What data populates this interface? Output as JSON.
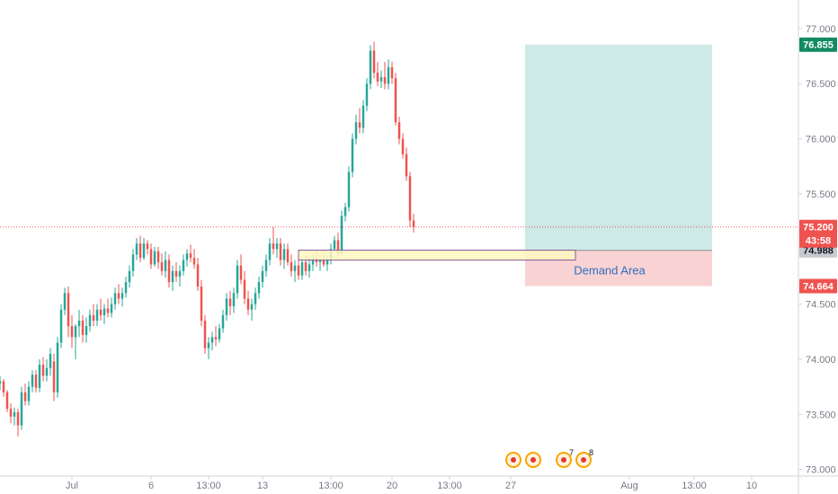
{
  "colors": {
    "up": "#26a69a",
    "down": "#ef5350",
    "target_zone": "#cdeae6",
    "stop_zone": "#f9d2d3",
    "demand_fill": "#fff7c0",
    "demand_stroke": "#8a5a9a",
    "demand_text": "#2f6fbf",
    "current_price_line": "#ef5350",
    "entry_tag": "#c7c9cf",
    "target_tag": "#138a63",
    "stop_tag": "#ef5350",
    "axis_line": "#d1d4dc"
  },
  "chart_data": {
    "type": "candlestick",
    "ylim": [
      72.94,
      77.26
    ],
    "y_ticks": [
      "73.000",
      "73.500",
      "74.000",
      "74.500",
      "75.000",
      "75.500",
      "76.000",
      "76.500",
      "77.000"
    ],
    "x_ticks": [
      "Jul",
      "6",
      "13:00",
      "13",
      "13:00",
      "20",
      "13:00",
      "27",
      "Aug",
      "13:00",
      "10"
    ],
    "x_tick_index": [
      20,
      42,
      58,
      73,
      92,
      109,
      125,
      142,
      175,
      193,
      209
    ],
    "x_range_index": [
      0,
      222
    ],
    "candles": [
      [
        73.78,
        73.85,
        73.72,
        73.8
      ],
      [
        73.8,
        73.82,
        73.66,
        73.7
      ],
      [
        73.7,
        73.72,
        73.52,
        73.55
      ],
      [
        73.55,
        73.6,
        73.42,
        73.48
      ],
      [
        73.48,
        73.56,
        73.4,
        73.52
      ],
      [
        73.52,
        73.55,
        73.3,
        73.4
      ],
      [
        73.4,
        73.75,
        73.36,
        73.7
      ],
      [
        73.7,
        73.78,
        73.58,
        73.62
      ],
      [
        73.62,
        73.8,
        73.58,
        73.75
      ],
      [
        73.75,
        73.9,
        73.7,
        73.86
      ],
      [
        73.86,
        73.9,
        73.7,
        73.74
      ],
      [
        73.74,
        74.0,
        73.7,
        73.95
      ],
      [
        73.95,
        74.02,
        73.8,
        73.85
      ],
      [
        73.85,
        74.0,
        73.8,
        73.92
      ],
      [
        73.92,
        74.1,
        73.85,
        74.05
      ],
      [
        73.98,
        74.05,
        73.62,
        73.7
      ],
      [
        73.7,
        74.2,
        73.65,
        74.15
      ],
      [
        74.15,
        74.5,
        74.1,
        74.45
      ],
      [
        74.45,
        74.65,
        74.4,
        74.6
      ],
      [
        74.6,
        74.66,
        74.2,
        74.3
      ],
      [
        74.3,
        74.4,
        74.1,
        74.2
      ],
      [
        74.2,
        74.32,
        74.0,
        74.3
      ],
      [
        74.3,
        74.45,
        74.2,
        74.35
      ],
      [
        74.35,
        74.4,
        74.15,
        74.22
      ],
      [
        74.22,
        74.38,
        74.15,
        74.3
      ],
      [
        74.3,
        74.45,
        74.25,
        74.4
      ],
      [
        74.4,
        74.5,
        74.3,
        74.35
      ],
      [
        74.35,
        74.5,
        74.3,
        74.45
      ],
      [
        74.45,
        74.55,
        74.35,
        74.4
      ],
      [
        74.4,
        74.5,
        74.32,
        74.46
      ],
      [
        74.46,
        74.55,
        74.38,
        74.42
      ],
      [
        74.42,
        74.56,
        74.38,
        74.5
      ],
      [
        74.5,
        74.65,
        74.45,
        74.6
      ],
      [
        74.6,
        74.68,
        74.5,
        74.55
      ],
      [
        74.55,
        74.65,
        74.48,
        74.6
      ],
      [
        74.6,
        74.75,
        74.56,
        74.7
      ],
      [
        74.7,
        74.85,
        74.65,
        74.8
      ],
      [
        74.8,
        75.0,
        74.75,
        74.95
      ],
      [
        74.95,
        75.1,
        74.9,
        75.05
      ],
      [
        75.05,
        75.12,
        74.88,
        74.92
      ],
      [
        74.92,
        75.1,
        74.9,
        75.05
      ],
      [
        75.05,
        75.08,
        74.95,
        75.0
      ],
      [
        75.0,
        75.05,
        74.82,
        74.86
      ],
      [
        74.86,
        75.02,
        74.84,
        74.98
      ],
      [
        74.98,
        75.02,
        74.82,
        74.88
      ],
      [
        74.88,
        74.96,
        74.76,
        74.8
      ],
      [
        74.8,
        74.98,
        74.74,
        74.9
      ],
      [
        74.9,
        74.95,
        74.65,
        74.7
      ],
      [
        74.7,
        74.85,
        74.62,
        74.8
      ],
      [
        74.8,
        74.88,
        74.7,
        74.75
      ],
      [
        74.75,
        74.85,
        74.66,
        74.8
      ],
      [
        74.8,
        74.95,
        74.76,
        74.9
      ],
      [
        74.9,
        75.0,
        74.84,
        74.96
      ],
      [
        74.96,
        75.04,
        74.88,
        74.92
      ],
      [
        74.92,
        75.0,
        74.82,
        74.86
      ],
      [
        74.86,
        74.92,
        74.62,
        74.66
      ],
      [
        74.66,
        74.72,
        74.3,
        74.35
      ],
      [
        74.35,
        74.4,
        74.05,
        74.1
      ],
      [
        74.1,
        74.2,
        74.0,
        74.15
      ],
      [
        74.15,
        74.25,
        74.08,
        74.2
      ],
      [
        74.2,
        74.3,
        74.12,
        74.18
      ],
      [
        74.18,
        74.32,
        74.15,
        74.28
      ],
      [
        74.28,
        74.45,
        74.24,
        74.4
      ],
      [
        74.4,
        74.6,
        74.35,
        74.55
      ],
      [
        74.55,
        74.62,
        74.4,
        74.48
      ],
      [
        74.48,
        74.65,
        74.42,
        74.6
      ],
      [
        74.6,
        74.9,
        74.55,
        74.85
      ],
      [
        74.85,
        74.95,
        74.68,
        74.72
      ],
      [
        74.72,
        74.8,
        74.5,
        74.55
      ],
      [
        74.55,
        74.62,
        74.4,
        74.45
      ],
      [
        74.45,
        74.55,
        74.35,
        74.5
      ],
      [
        74.5,
        74.65,
        74.45,
        74.6
      ],
      [
        74.6,
        74.75,
        74.55,
        74.7
      ],
      [
        74.7,
        74.85,
        74.65,
        74.8
      ],
      [
        74.8,
        74.95,
        74.75,
        74.9
      ],
      [
        74.9,
        75.1,
        74.85,
        75.05
      ],
      [
        75.05,
        75.2,
        74.95,
        75.0
      ],
      [
        75.0,
        75.1,
        74.92,
        75.05
      ],
      [
        75.05,
        75.1,
        74.85,
        74.9
      ],
      [
        74.9,
        75.05,
        74.82,
        75.0
      ],
      [
        75.0,
        75.05,
        74.85,
        74.88
      ],
      [
        74.88,
        74.95,
        74.75,
        74.8
      ],
      [
        74.8,
        74.9,
        74.7,
        74.85
      ],
      [
        74.85,
        74.9,
        74.72,
        74.76
      ],
      [
        74.76,
        74.92,
        74.72,
        74.88
      ],
      [
        74.88,
        74.95,
        74.76,
        74.8
      ],
      [
        74.8,
        74.92,
        74.74,
        74.86
      ],
      [
        74.86,
        74.96,
        74.8,
        74.92
      ],
      [
        74.92,
        74.98,
        74.84,
        74.88
      ],
      [
        74.88,
        74.95,
        74.8,
        74.9
      ],
      [
        74.9,
        74.98,
        74.84,
        74.86
      ],
      [
        74.86,
        74.94,
        74.8,
        74.9
      ],
      [
        74.9,
        75.05,
        74.86,
        75.0
      ],
      [
        75.0,
        75.12,
        74.98,
        75.08
      ],
      [
        75.08,
        75.15,
        74.92,
        74.96
      ],
      [
        74.96,
        75.35,
        74.94,
        75.3
      ],
      [
        75.3,
        75.42,
        75.25,
        75.38
      ],
      [
        75.38,
        75.75,
        75.34,
        75.7
      ],
      [
        75.7,
        76.05,
        75.65,
        76.0
      ],
      [
        76.0,
        76.22,
        75.95,
        76.15
      ],
      [
        76.15,
        76.28,
        76.05,
        76.1
      ],
      [
        76.1,
        76.35,
        76.05,
        76.3
      ],
      [
        76.3,
        76.55,
        76.25,
        76.5
      ],
      [
        76.5,
        76.85,
        76.45,
        76.8
      ],
      [
        76.8,
        76.88,
        76.55,
        76.6
      ],
      [
        76.6,
        76.7,
        76.48,
        76.52
      ],
      [
        76.52,
        76.62,
        76.46,
        76.56
      ],
      [
        76.56,
        76.7,
        76.45,
        76.5
      ],
      [
        76.5,
        76.72,
        76.45,
        76.65
      ],
      [
        76.65,
        76.7,
        76.5,
        76.55
      ],
      [
        76.55,
        76.6,
        76.12,
        76.15
      ],
      [
        76.15,
        76.2,
        75.95,
        76.0
      ],
      [
        76.0,
        76.05,
        75.82,
        75.86
      ],
      [
        75.86,
        75.92,
        75.62,
        75.66
      ],
      [
        75.66,
        75.7,
        75.2,
        75.26
      ],
      [
        75.26,
        75.32,
        75.15,
        75.2
      ]
    ],
    "candle_index_start": 0,
    "candle_index_step": 1,
    "last_index_offset": 4,
    "current_price": 75.2,
    "entry_price": 74.988,
    "target_price": 76.855,
    "stop_price": 74.664,
    "demand_zone": {
      "top": 74.99,
      "bottom": 74.9,
      "from_index": 83,
      "to_index": 160
    },
    "position_box": {
      "from_index": 146,
      "to_index": 198
    },
    "annotation": "Demand Area",
    "price_tags": {
      "target": "76.855",
      "current": "75.200",
      "countdown": "43:58",
      "entry": "74.988",
      "stop": "74.664"
    },
    "event_markers": [
      {
        "label": "",
        "kind": "flag-icon"
      },
      {
        "label": "",
        "kind": "flag-icon"
      },
      {
        "label": "7",
        "kind": "news-icon"
      },
      {
        "label": "8",
        "kind": "news-icon"
      }
    ]
  }
}
